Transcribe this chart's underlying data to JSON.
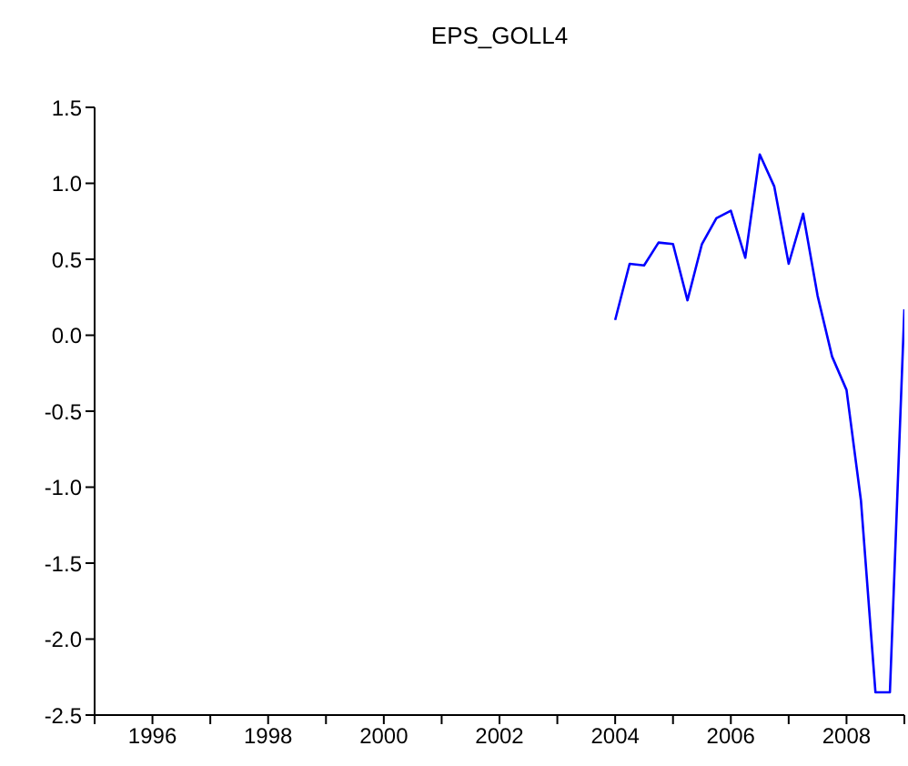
{
  "chart_data": {
    "type": "line",
    "title": "EPS_GOLL4",
    "x": [
      2004,
      2004.25,
      2004.5,
      2004.75,
      2005,
      2005.25,
      2005.5,
      2005.75,
      2006,
      2006.25,
      2006.5,
      2006.75,
      2007,
      2007.25,
      2007.5,
      2007.75,
      2008,
      2008.25,
      2008.5,
      2008.75,
      2009
    ],
    "series": [
      {
        "color": "#0000ff",
        "values": [
          0.1,
          0.47,
          0.46,
          0.61,
          0.6,
          0.23,
          0.6,
          0.77,
          0.82,
          0.51,
          1.19,
          0.98,
          0.47,
          0.8,
          0.26,
          -0.14,
          -0.36,
          -1.09,
          -2.35,
          -2.35,
          0.17
        ]
      }
    ],
    "xlim": [
      1995,
      2009
    ],
    "xticks": [
      {
        "value": 1995,
        "label": null
      },
      1996,
      {
        "value": 1997,
        "label": null
      },
      1998,
      {
        "value": 1999,
        "label": null
      },
      2000,
      {
        "value": 2001,
        "label": null
      },
      2002,
      {
        "value": 2003,
        "label": null
      },
      2004,
      {
        "value": 2005,
        "label": null
      },
      2006,
      {
        "value": 2007,
        "label": null
      },
      2008,
      {
        "value": 2009,
        "label": null
      }
    ],
    "ylim": [
      -2.5,
      1.5
    ],
    "yticks": [
      {
        "value": -2.5,
        "label": "-2.5"
      },
      {
        "value": -2.0,
        "label": "-2.0"
      },
      {
        "value": -1.5,
        "label": "-1.5"
      },
      {
        "value": -1.0,
        "label": "-1.0"
      },
      {
        "value": -0.5,
        "label": "-0.5"
      },
      {
        "value": 0,
        "label": "0.0"
      },
      {
        "value": 0.5,
        "label": "0.5"
      },
      {
        "value": 1.0,
        "label": "1.0"
      },
      {
        "value": 1.5,
        "label": "1.5"
      }
    ],
    "grid": false,
    "legend": false,
    "marker": "none",
    "line_style": "solid"
  }
}
